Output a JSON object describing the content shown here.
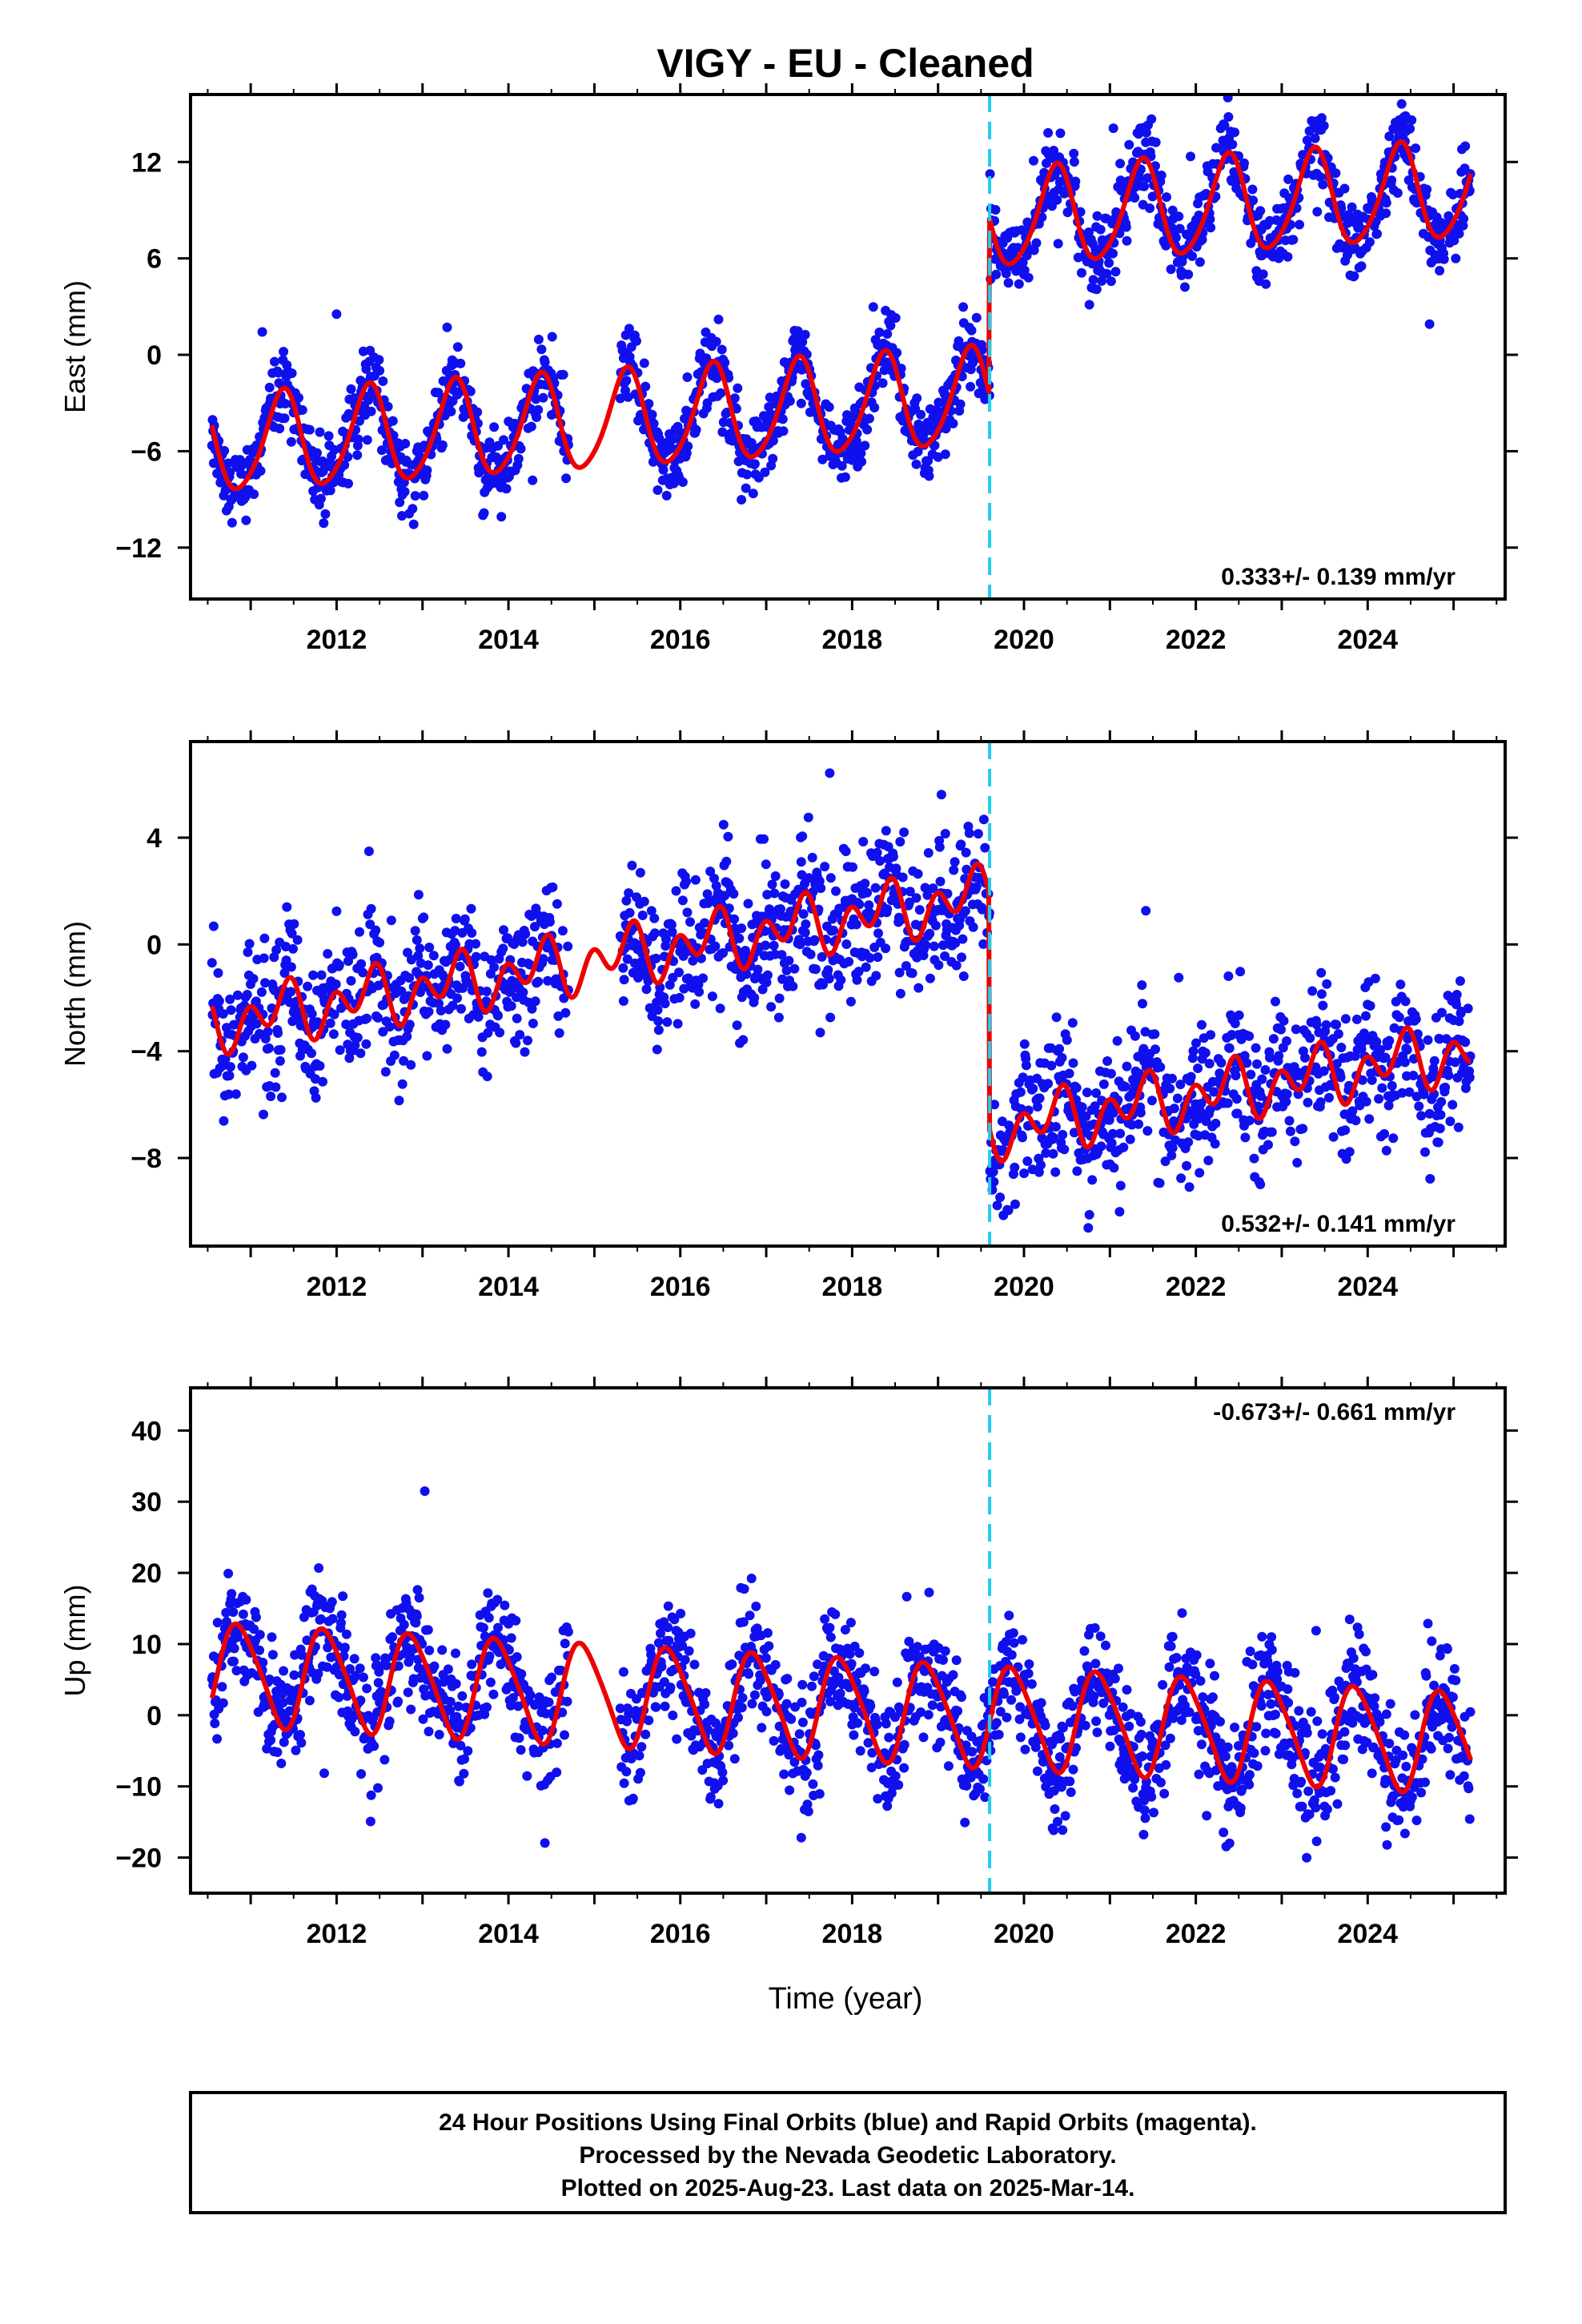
{
  "chart_data": {
    "title": "VIGY  - EU - Cleaned",
    "type": "scatter",
    "xlabel": "Time (year)",
    "xlim": [
      2010.3,
      2025.6
    ],
    "xticks": [
      2012,
      2014,
      2016,
      2018,
      2020,
      2022,
      2024
    ],
    "xtick_labels": [
      "2012",
      "2014",
      "2016",
      "2018",
      "2020",
      "2022",
      "2024"
    ],
    "equipment_change_year": 2019.6,
    "data_start_year": 2010.55,
    "data_end_year": 2025.2,
    "data_gap": [
      2014.7,
      2015.3
    ],
    "colors": {
      "points": "#1010ee",
      "model": "#ee0000",
      "event_line": "#22ccee",
      "frame": "#000000"
    },
    "panels": [
      {
        "id": "east",
        "ylabel": "East (mm)",
        "ylim": [
          -15.2,
          16.2
        ],
        "yticks": [
          -12,
          -6,
          0,
          6,
          12
        ],
        "ytick_labels": [
          "-12",
          "-6",
          "0",
          "6",
          "12"
        ],
        "rate_text": "0.333+/- 0.139 mm/yr",
        "rate_pos": "bottom-right",
        "model": {
          "offset": -4.2,
          "trend": 0.333,
          "amp1": 3.0,
          "phase1": 0.12,
          "amp2": 0.4,
          "phase2": 0.3,
          "step": 11.0
        },
        "noise_sd": 1.2
      },
      {
        "id": "north",
        "ylabel": "North (mm)",
        "ylim": [
          -11.3,
          7.6
        ],
        "yticks": [
          -8,
          -4,
          0,
          4
        ],
        "ytick_labels": [
          "-8",
          "-4",
          "0",
          "4"
        ],
        "rate_text": "0.532+/- 0.141 mm/yr",
        "rate_pos": "bottom-right",
        "model": {
          "offset": -0.6,
          "trend": 0.532,
          "amp1": 0.6,
          "phase1": 0.1,
          "amp2": 0.8,
          "phase2": 0.35,
          "step": -8.8
        },
        "noise_sd": 1.3
      },
      {
        "id": "up",
        "ylabel": "Up (mm)",
        "ylim": [
          -25,
          46
        ],
        "yticks": [
          -20,
          -10,
          0,
          10,
          20,
          30,
          40
        ],
        "ytick_labels": [
          "-20",
          "-10",
          "0",
          "10",
          "20",
          "30",
          "40"
        ],
        "rate_text": "-0.673+/- 0.661 mm/yr",
        "rate_pos": "top-right",
        "model": {
          "offset": 3.0,
          "trend": -0.673,
          "amp1": 7.0,
          "phase1": 0.62,
          "amp2": 1.0,
          "phase2": 0.1,
          "step": 0.0
        },
        "noise_sd": 4.2
      }
    ]
  },
  "footer": {
    "line1": "24 Hour Positions Using Final Orbits (blue) and Rapid Orbits (magenta).",
    "line2": "Processed by the Nevada Geodetic Laboratory.",
    "line3": "Plotted on 2025-Aug-23. Last data on 2025-Mar-14."
  }
}
